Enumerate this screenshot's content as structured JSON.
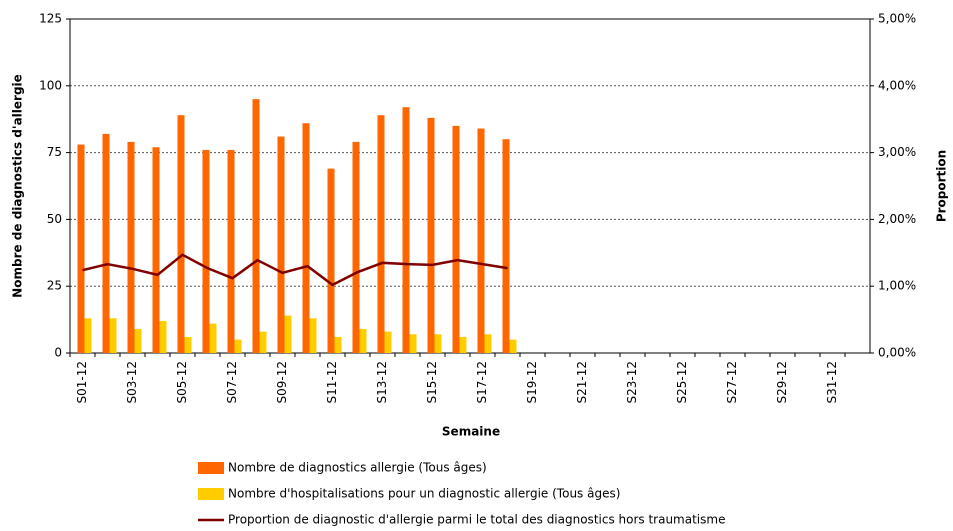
{
  "chart_data": {
    "type": "bar",
    "x_label": "Semaine",
    "y_label": "Nombre de diagnostics d'allergie",
    "y2_label": "Proportion",
    "categories": [
      "S01-12",
      null,
      "S03-12",
      null,
      "S05-12",
      null,
      "S07-12",
      null,
      "S09-12",
      null,
      "S11-12",
      null,
      "S13-12",
      null,
      "S15-12",
      null,
      "S17-12",
      null,
      "S19-12",
      null,
      "S21-12",
      null,
      "S23-12",
      null,
      "S25-12",
      null,
      "S27-12",
      null,
      "S29-12",
      null,
      "S31-12",
      null
    ],
    "series": [
      {
        "name": "Nombre de diagnostics allergie (Tous âges)",
        "type": "bar",
        "color": "#ff6600",
        "values": [
          78,
          82,
          79,
          77,
          89,
          76,
          76,
          95,
          81,
          86,
          69,
          79,
          89,
          92,
          88,
          85,
          84,
          80,
          null,
          null,
          null,
          null,
          null,
          null,
          null,
          null,
          null,
          null,
          null,
          null,
          null,
          null
        ]
      },
      {
        "name": "Nombre d'hospitalisations pour un diagnostic allergie (Tous âges)",
        "type": "bar",
        "color": "#ffcc00",
        "values": [
          13,
          13,
          9,
          12,
          6,
          11,
          5,
          8,
          14,
          13,
          6,
          9,
          8,
          7,
          7,
          6,
          7,
          5,
          null,
          null,
          null,
          null,
          null,
          null,
          null,
          null,
          null,
          null,
          null,
          null,
          null,
          null
        ]
      },
      {
        "name": "Proportion de diagnostic d'allergie parmi le total des diagnostics hors traumatisme",
        "type": "line",
        "axis": "y2",
        "color": "#800000",
        "values": [
          1.24,
          1.33,
          1.26,
          1.17,
          1.47,
          1.27,
          1.12,
          1.39,
          1.2,
          1.3,
          1.02,
          1.21,
          1.35,
          1.33,
          1.32,
          1.39,
          1.33,
          1.27,
          null,
          null,
          null,
          null,
          null,
          null,
          null,
          null,
          null,
          null,
          null,
          null,
          null,
          null
        ]
      }
    ],
    "ylim": [
      0,
      125
    ],
    "yticks": [
      0,
      25,
      50,
      75,
      100,
      125
    ],
    "y2lim": [
      0,
      5
    ],
    "y2ticks": [
      {
        "value": 0,
        "label": "0,00%"
      },
      {
        "value": 1,
        "label": "1,00%"
      },
      {
        "value": 2,
        "label": "2,00%"
      },
      {
        "value": 3,
        "label": "3,00%"
      },
      {
        "value": 4,
        "label": "4,00%"
      },
      {
        "value": 5,
        "label": "5,00%"
      }
    ],
    "grid": true,
    "legend": "bottom"
  }
}
